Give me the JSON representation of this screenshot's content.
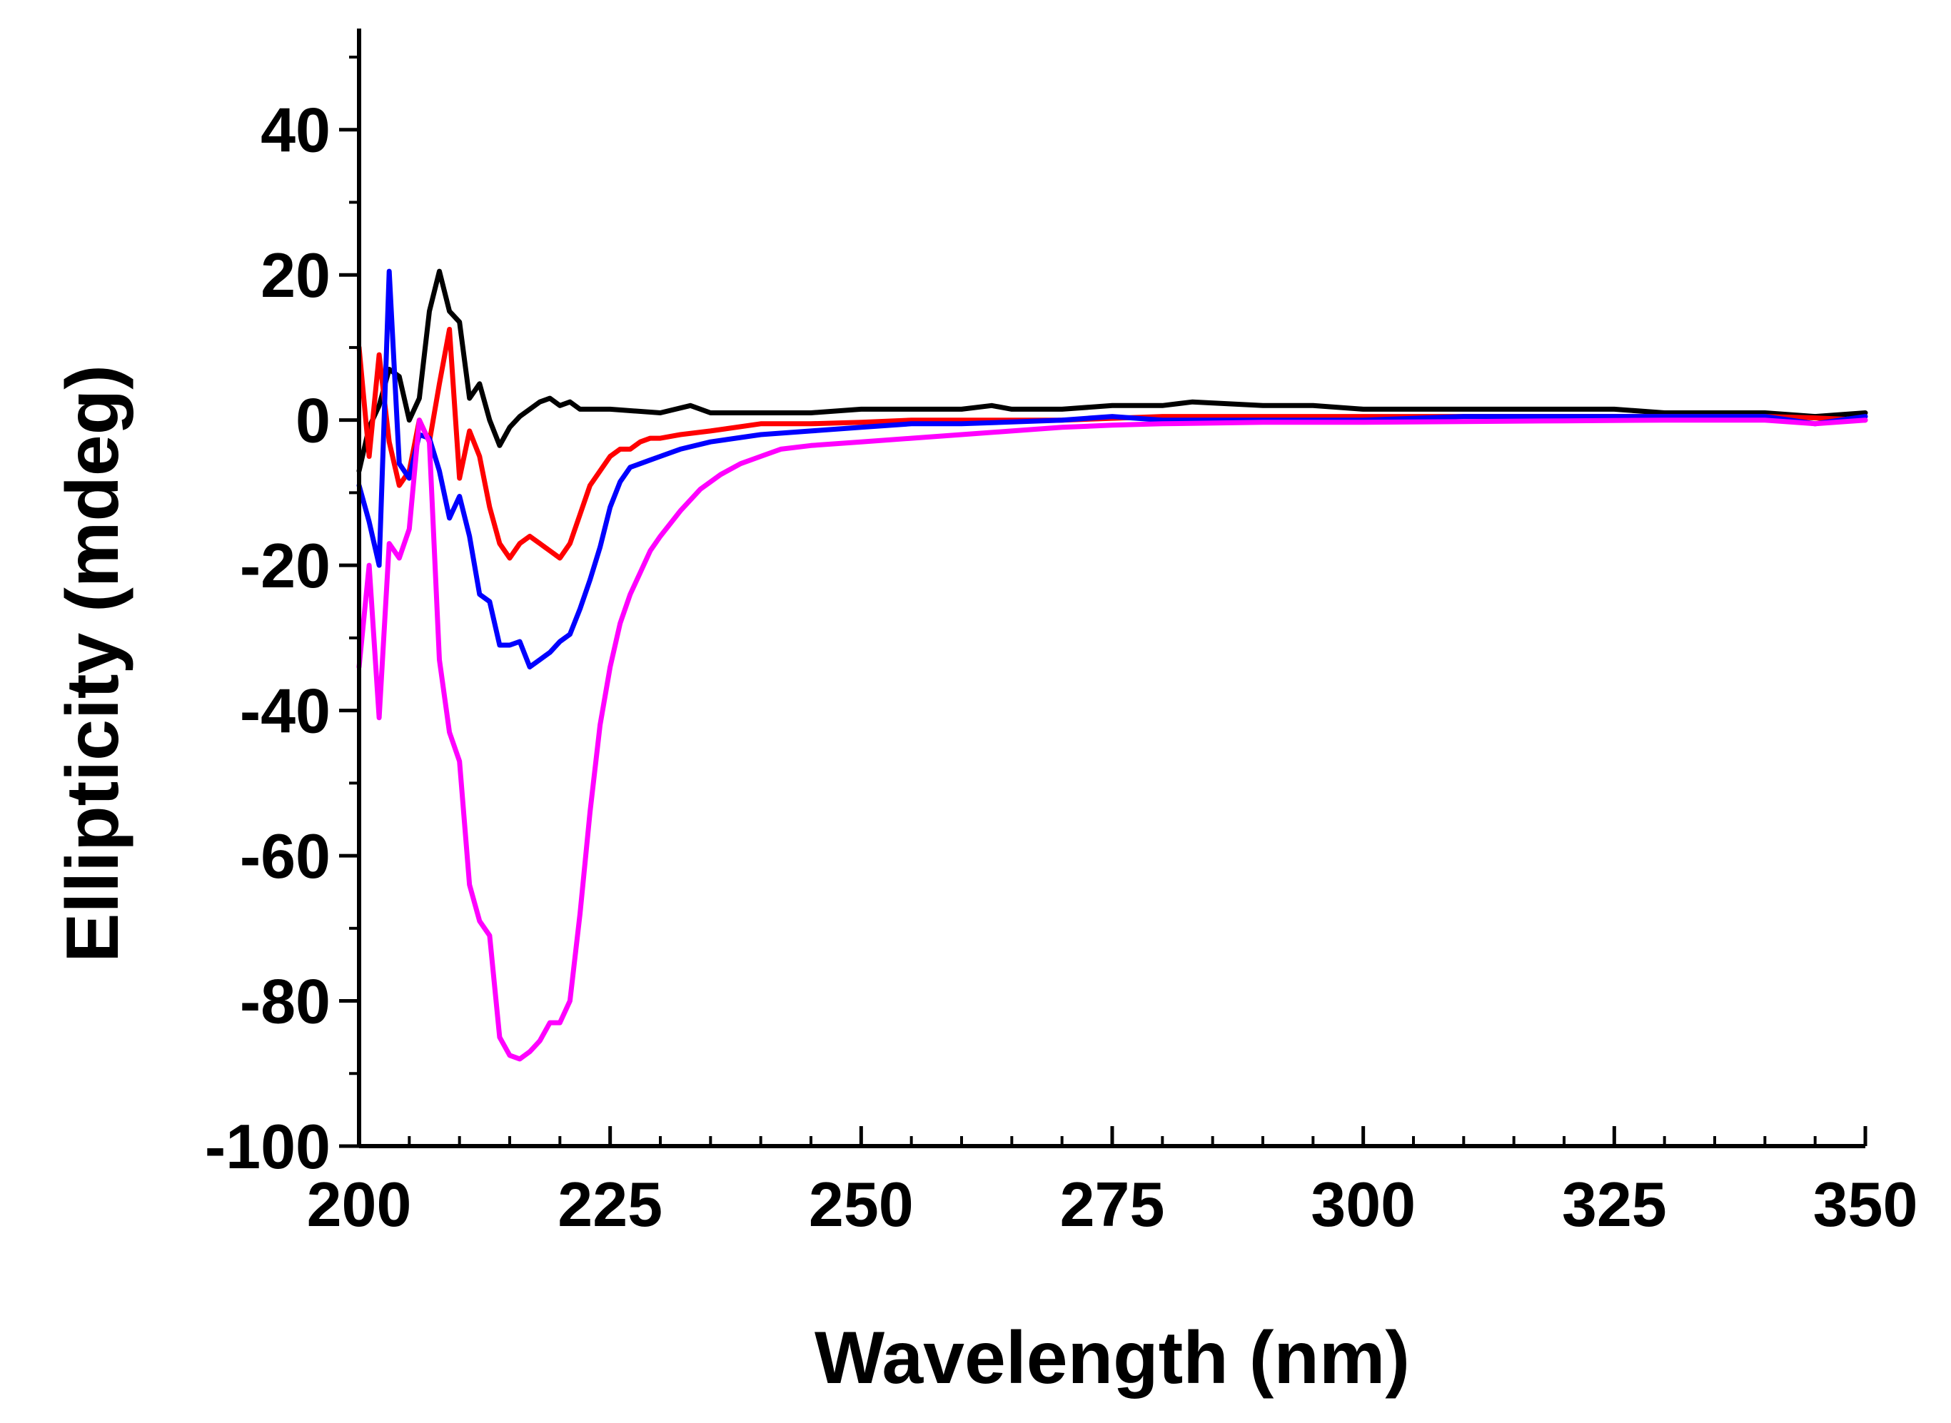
{
  "chart_data": {
    "type": "line",
    "title": "",
    "xlabel": "Wavelength (nm)",
    "ylabel": "Ellipticity (mdeg)",
    "xlim": [
      200,
      350
    ],
    "ylim": [
      -100,
      50
    ],
    "xticks": [
      200,
      225,
      250,
      275,
      300,
      325,
      350
    ],
    "xtick_labels": [
      "200",
      "225",
      "250",
      "275",
      "300",
      "325",
      "350"
    ],
    "yticks": [
      -100,
      -80,
      -60,
      -40,
      -20,
      0,
      20,
      40
    ],
    "ytick_labels": [
      "-100",
      "-80",
      "-60",
      "-40",
      "-20",
      "0",
      "20",
      "40"
    ],
    "x_minor_step": 5,
    "y_minor_step": 10,
    "grid": false,
    "legend": "none",
    "series": [
      {
        "name": "black",
        "color": "#000000",
        "x": [
          200,
          201,
          202,
          203,
          204,
          205,
          206,
          207,
          208,
          209,
          210,
          211,
          212,
          213,
          214,
          215,
          216,
          217,
          218,
          219,
          220,
          221,
          222,
          223,
          225,
          230,
          233,
          235,
          240,
          245,
          250,
          255,
          260,
          263,
          265,
          270,
          275,
          280,
          283,
          290,
          295,
          300,
          305,
          310,
          315,
          320,
          325,
          330,
          335,
          340,
          345,
          350
        ],
        "y": [
          -7,
          -1,
          2,
          7,
          6,
          0,
          3,
          15,
          20.5,
          15,
          13.5,
          3,
          5,
          0,
          -3.5,
          -1,
          0.5,
          1.5,
          2.5,
          3,
          2,
          2.5,
          1.5,
          1.5,
          1.5,
          1,
          2,
          1,
          1,
          1,
          1.5,
          1.5,
          1.5,
          2,
          1.5,
          1.5,
          2,
          2,
          2.5,
          2,
          2,
          1.5,
          1.5,
          1.5,
          1.5,
          1.5,
          1.5,
          1,
          1,
          1,
          0.5,
          1
        ]
      },
      {
        "name": "red",
        "color": "#ff0000",
        "x": [
          200,
          201,
          202,
          203,
          204,
          205,
          206,
          207,
          208,
          209,
          210,
          211,
          212,
          213,
          214,
          215,
          216,
          217,
          218,
          219,
          220,
          221,
          222,
          223,
          224,
          225,
          226,
          227,
          228,
          229,
          230,
          232,
          235,
          240,
          245,
          250,
          255,
          260,
          270,
          280,
          290,
          300,
          310,
          320,
          330,
          340,
          345,
          350
        ],
        "y": [
          10,
          -5,
          9,
          -3,
          -9,
          -7,
          0,
          -3,
          5,
          12.5,
          -8,
          -1.5,
          -5,
          -12,
          -17,
          -19,
          -17,
          -16,
          -17,
          -18,
          -19,
          -17,
          -13,
          -9,
          -7,
          -5,
          -4,
          -4,
          -3,
          -2.5,
          -2.5,
          -2,
          -1.5,
          -0.5,
          -0.5,
          -0.3,
          0,
          0,
          0,
          0.5,
          0.5,
          0.5,
          0.5,
          0.5,
          0.5,
          0.5,
          0.3,
          0
        ]
      },
      {
        "name": "blue",
        "color": "#0000ff",
        "x": [
          200,
          201,
          202,
          203,
          204,
          205,
          206,
          207,
          208,
          209,
          210,
          211,
          212,
          213,
          214,
          215,
          216,
          217,
          218,
          219,
          220,
          221,
          222,
          223,
          224,
          225,
          226,
          227,
          228,
          229,
          230,
          232,
          235,
          240,
          245,
          250,
          255,
          260,
          270,
          275,
          280,
          290,
          300,
          310,
          320,
          330,
          340,
          345,
          350
        ],
        "y": [
          -9,
          -14,
          -20,
          20.5,
          -6,
          -8,
          -2,
          -2.5,
          -7,
          -13.5,
          -10.5,
          -16,
          -24,
          -25,
          -31,
          -31,
          -30.5,
          -34,
          -33,
          -32,
          -30.5,
          -29.5,
          -26,
          -22,
          -17.5,
          -12,
          -8.5,
          -6.5,
          -6,
          -5.5,
          -5,
          -4,
          -3,
          -2,
          -1.5,
          -1,
          -0.5,
          -0.5,
          0,
          0.5,
          0,
          0,
          0,
          0.5,
          0.5,
          0.5,
          0.5,
          -0.5,
          0.5
        ]
      },
      {
        "name": "magenta",
        "color": "#ff00ff",
        "x": [
          200,
          201,
          202,
          203,
          204,
          205,
          206,
          207,
          208,
          209,
          210,
          211,
          212,
          213,
          214,
          215,
          216,
          217,
          218,
          219,
          220,
          221,
          222,
          223,
          224,
          225,
          226,
          227,
          228,
          229,
          230,
          232,
          234,
          236,
          238,
          240,
          242,
          245,
          250,
          255,
          260,
          265,
          270,
          275,
          280,
          290,
          300,
          310,
          320,
          330,
          340,
          345,
          350
        ],
        "y": [
          -34,
          -20,
          -41,
          -17,
          -19,
          -15,
          0,
          -3,
          -33,
          -43,
          -47,
          -64,
          -69,
          -71,
          -85,
          -87.5,
          -88,
          -87,
          -85.5,
          -83,
          -83,
          -80,
          -68,
          -54,
          -42,
          -34,
          -28,
          -24,
          -21,
          -18,
          -16,
          -12.5,
          -9.5,
          -7.5,
          -6,
          -5,
          -4,
          -3.5,
          -3,
          -2.5,
          -2,
          -1.5,
          -1,
          -0.7,
          -0.5,
          -0.3,
          -0.3,
          -0.2,
          -0.1,
          0,
          0,
          -0.5,
          0
        ]
      }
    ]
  }
}
